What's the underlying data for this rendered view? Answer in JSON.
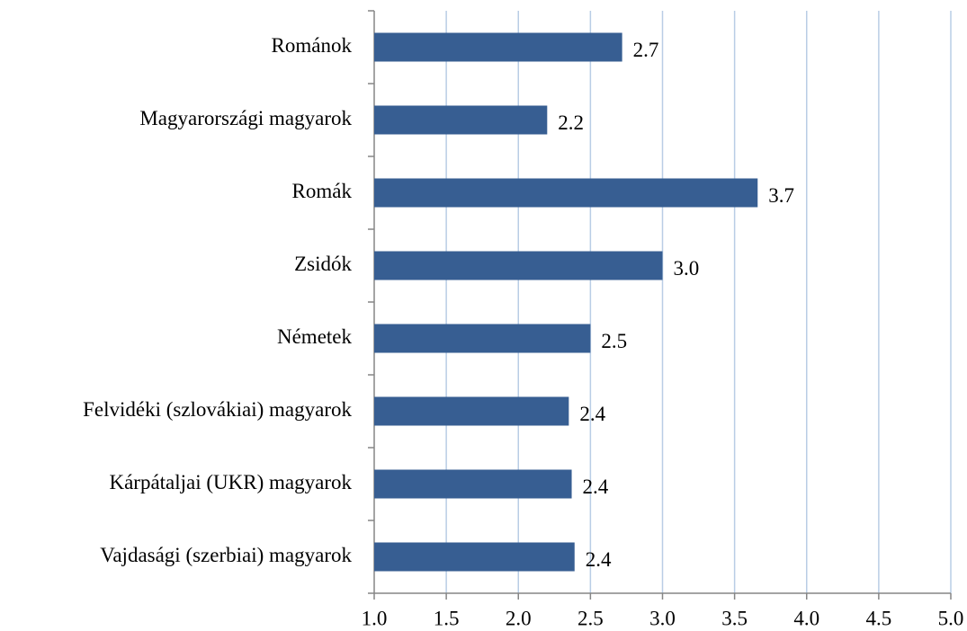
{
  "chart_data": {
    "type": "bar",
    "orientation": "horizontal",
    "categories": [
      "Románok",
      "Magyarországi magyarok",
      "Romák",
      "Zsidók",
      "Németek",
      "Felvidéki (szlovákiai) magyarok",
      "Kárpátaljai (UKR) magyarok",
      "Vajdasági (szerbiai) magyarok"
    ],
    "values": [
      2.72,
      2.2,
      3.66,
      3.0,
      2.5,
      2.35,
      2.37,
      2.39
    ],
    "value_labels": [
      "2.7",
      "2.2",
      "3.7",
      "3.0",
      "2.5",
      "2.4",
      "2.4",
      "2.4"
    ],
    "color": "#375e92",
    "xlim": [
      1,
      5
    ],
    "xticks": [
      {
        "value": 1,
        "label": "1.0"
      },
      {
        "value": 1.5,
        "label": "1.5"
      },
      {
        "value": 2,
        "label": "2.0"
      },
      {
        "value": 2.5,
        "label": "2.5"
      },
      {
        "value": 3,
        "label": "3.0"
      },
      {
        "value": 3.5,
        "label": "3.5"
      },
      {
        "value": 4,
        "label": "4.0"
      },
      {
        "value": 4.5,
        "label": "4.5"
      },
      {
        "value": 5,
        "label": "5.0"
      }
    ],
    "grid": true
  }
}
